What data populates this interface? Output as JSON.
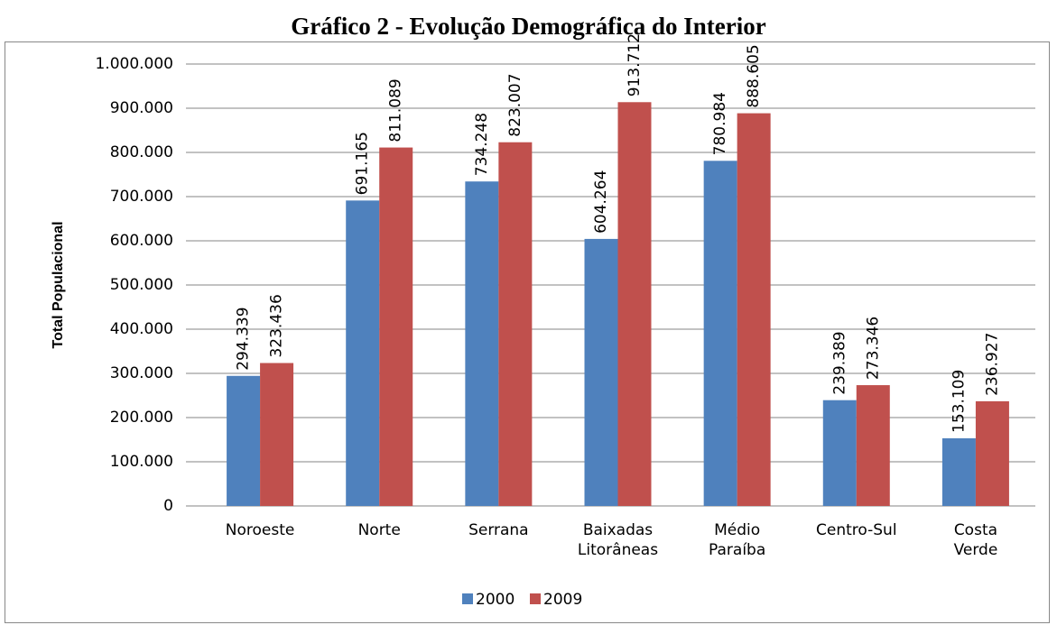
{
  "chart_data": {
    "type": "bar",
    "title": "Gráfico 2 - Evolução Demográfica do Interior",
    "y_label": "Total Populacional",
    "categories": [
      "Noroeste",
      "Norte",
      "Serrana",
      "Baixadas Litorâneas",
      "Médio Paraíba",
      "Centro-Sul",
      "Costa Verde"
    ],
    "series": [
      {
        "name": "2000",
        "color": "#4f81bd",
        "values": [
          294339,
          691165,
          734248,
          604264,
          780984,
          239389,
          153109
        ],
        "value_labels": [
          "294.339",
          "691.165",
          "734.248",
          "604.264",
          "780.984",
          "239.389",
          "153.109"
        ]
      },
      {
        "name": "2009",
        "color": "#c0504d",
        "values": [
          323436,
          811089,
          823007,
          913712,
          888605,
          273346,
          236927
        ],
        "value_labels": [
          "323.436",
          "811.089",
          "823.007",
          "913.712",
          "888.605",
          "273.346",
          "236.927"
        ]
      }
    ],
    "ylim": [
      0,
      1000000
    ],
    "yticks": [
      0,
      {
        "value": 100000,
        "label": "100.000"
      },
      {
        "value": 200000,
        "label": "200.000"
      },
      {
        "value": 300000,
        "label": "300.000"
      },
      {
        "value": 400000,
        "label": "400.000"
      },
      {
        "value": 500000,
        "label": "500.000"
      },
      {
        "value": 600000,
        "label": "600.000"
      },
      {
        "value": 700000,
        "label": "700.000"
      },
      {
        "value": 800000,
        "label": "800.000"
      },
      {
        "value": 900000,
        "label": "900.000"
      },
      {
        "value": 1000000,
        "label": "1.000.000"
      }
    ],
    "grid": true,
    "legend": "bottom"
  }
}
